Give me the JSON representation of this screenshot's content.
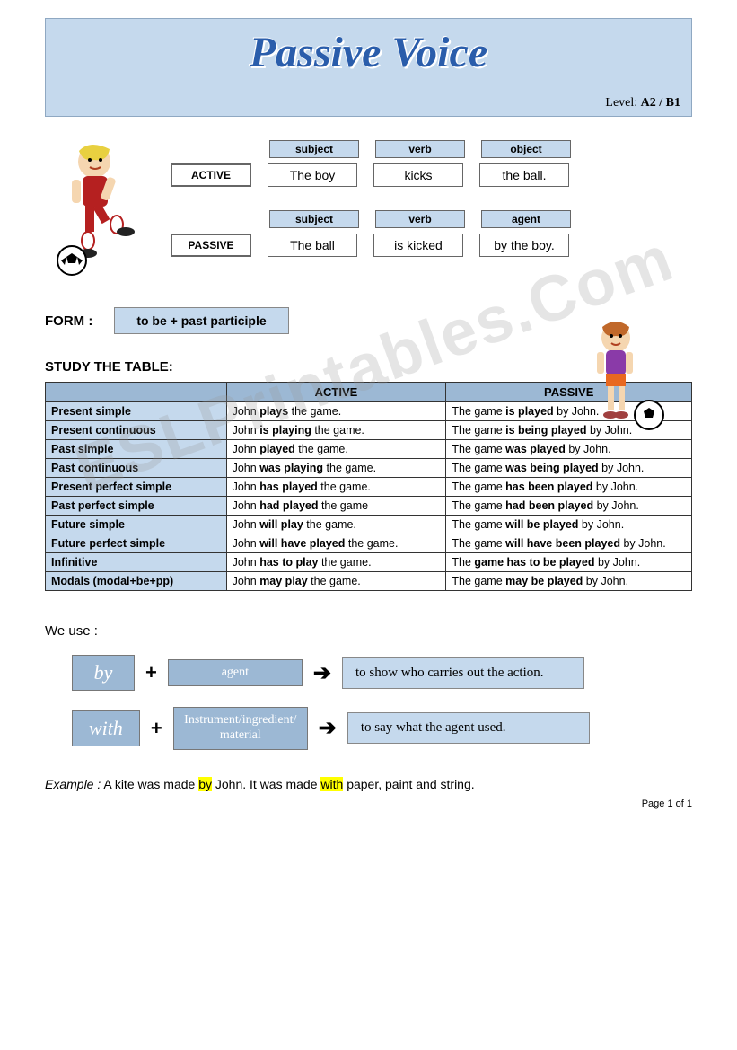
{
  "header": {
    "title": "Passive Voice",
    "level_label": "Level:",
    "level_value": "A2 / B1",
    "banner_bg": "#c5d9ed",
    "title_color": "#2a5dab"
  },
  "sentences": {
    "active_headers": [
      "subject",
      "verb",
      "object"
    ],
    "passive_headers": [
      "subject",
      "verb",
      "agent"
    ],
    "active_label": "ACTIVE",
    "passive_label": "PASSIVE",
    "active_words": [
      "The boy",
      "kicks",
      "the ball."
    ],
    "passive_words": [
      "The ball",
      "is kicked",
      "by the boy."
    ]
  },
  "form": {
    "label": "FORM :",
    "value": "to be + past participle"
  },
  "study_label": "STUDY THE TABLE:",
  "table": {
    "headers": [
      "",
      "ACTIVE",
      "PASSIVE"
    ],
    "rows": [
      {
        "tense": "Present simple",
        "a_pre": "John ",
        "a_b": "plays",
        "a_post": " the game.",
        "p_pre": "The game ",
        "p_b": "is played",
        "p_post": " by John."
      },
      {
        "tense": "Present continuous",
        "a_pre": "John ",
        "a_b": "is playing",
        "a_post": " the game.",
        "p_pre": "The game ",
        "p_b": "is being played",
        "p_post": " by John."
      },
      {
        "tense": "Past simple",
        "a_pre": "John ",
        "a_b": "played",
        "a_post": " the game.",
        "p_pre": "The game ",
        "p_b": "was played",
        "p_post": " by John."
      },
      {
        "tense": "Past continuous",
        "a_pre": "John ",
        "a_b": "was playing",
        "a_post": " the game.",
        "p_pre": "The game ",
        "p_b": "was being played",
        "p_post": " by John."
      },
      {
        "tense": "Present perfect simple",
        "a_pre": "John ",
        "a_b": "has played",
        "a_post": " the game.",
        "p_pre": "The game ",
        "p_b": "has been played",
        "p_post": " by John."
      },
      {
        "tense": "Past perfect simple",
        "a_pre": "John ",
        "a_b": "had played",
        "a_post": " the game",
        "p_pre": "The game ",
        "p_b": "had been played",
        "p_post": " by John."
      },
      {
        "tense": "Future simple",
        "a_pre": "John ",
        "a_b": "will play",
        "a_post": " the game.",
        "p_pre": "The game ",
        "p_b": "will be played",
        "p_post": " by John."
      },
      {
        "tense": "Future perfect simple",
        "a_pre": "John ",
        "a_b": "will have played",
        "a_post": " the game.",
        "p_pre": "The game ",
        "p_b": "will have been played",
        "p_post": " by John."
      },
      {
        "tense": "Infinitive",
        "a_pre": "John ",
        "a_b": "has to play",
        "a_post": " the game.",
        "p_pre": "The ",
        "p_b": "game has to be played",
        "p_post": " by John."
      },
      {
        "tense": "Modals (modal+be+pp)",
        "a_pre": "John ",
        "a_b": "may play",
        "a_post": " the game.",
        "p_pre": "The game ",
        "p_b": "may be played",
        "p_post": " by John."
      }
    ]
  },
  "usage": {
    "label": "We use :",
    "rows": [
      {
        "key": "by",
        "mid": "agent",
        "exp": "to show who carries out the action."
      },
      {
        "key": "with",
        "mid": "Instrument/ingredient/ material",
        "exp": "to say what the agent used."
      }
    ],
    "plus": "+",
    "arrow": "➔"
  },
  "example": {
    "label": "Example :",
    "pre": " A kite was made ",
    "hl1": "by",
    "mid": " John. It was made ",
    "hl2": "with",
    "post": " paper, paint and string."
  },
  "footer": "Page 1 of 1",
  "watermark": "ESLPrintables.Com",
  "colors": {
    "light_blue": "#c5d9ed",
    "mid_blue": "#9cb8d4",
    "border": "#666666",
    "highlight": "#ffff00"
  }
}
